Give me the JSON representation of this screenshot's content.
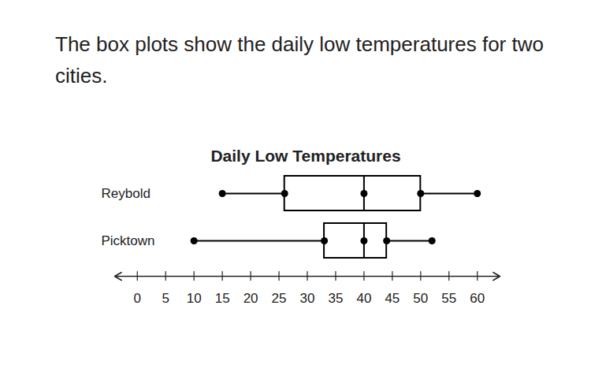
{
  "question": "The box plots show the daily low temperatures for two cities.",
  "chart_data": {
    "type": "box",
    "title": "Daily Low Temperatures",
    "categories": [
      "Reybold",
      "Picktown"
    ],
    "boxes": [
      {
        "name": "Reybold",
        "min": 15,
        "q1": 26,
        "median": 40,
        "q3": 50,
        "max": 60
      },
      {
        "name": "Picktown",
        "min": 10,
        "q1": 33,
        "median": 40,
        "q3": 44,
        "max": 52
      }
    ],
    "color": "#000000",
    "xlim": [
      -4,
      64
    ],
    "xticks": [
      0,
      5,
      10,
      15,
      20,
      25,
      30,
      35,
      40,
      45,
      50,
      55,
      60
    ]
  }
}
